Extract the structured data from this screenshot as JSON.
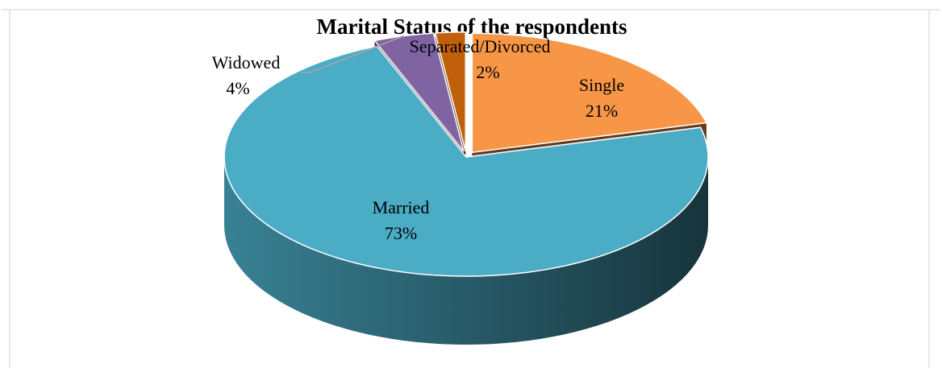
{
  "chart_data": {
    "type": "pie",
    "title": "Marital Status of the respondents",
    "categories": [
      "Single",
      "Married",
      "Widowed",
      "Separated/Divorced"
    ],
    "values": [
      21,
      73,
      4,
      2
    ],
    "value_labels": [
      "21%",
      "73%",
      "4%",
      "2%"
    ],
    "colors": [
      "#f79646",
      "#4bacc6",
      "#8064a2",
      "#c0600c"
    ],
    "three_d": true
  }
}
